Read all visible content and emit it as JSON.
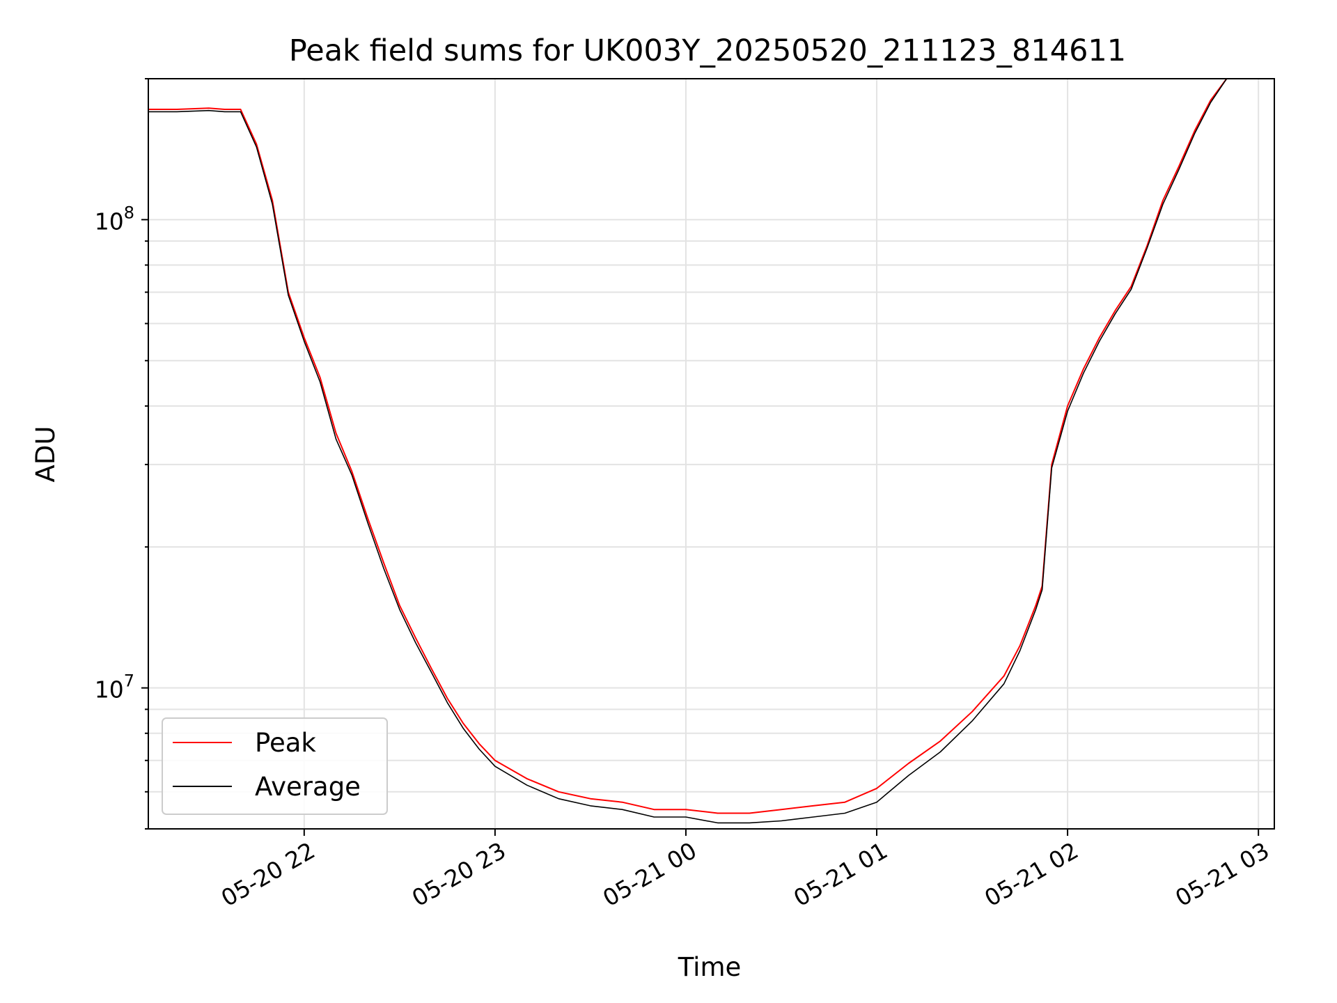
{
  "chart_data": {
    "type": "line",
    "title": "Peak field sums for UK003Y_20250520_211123_814611",
    "xlabel": "Time",
    "ylabel": "ADU",
    "x_ticks": [
      "2025-05-20 22:00",
      "2025-05-20 23:00",
      "2025-05-21 00:00",
      "2025-05-21 01:00",
      "2025-05-21 02:00",
      "2025-05-21 03:00"
    ],
    "x_tick_labels": [
      "05-20 22",
      "05-20 23",
      "05-21 00",
      "05-21 01",
      "05-21 02",
      "05-21 03"
    ],
    "xlim": [
      "2025-05-20 21:11",
      "2025-05-21 03:05"
    ],
    "y_scale": "log",
    "ylim": [
      5000000,
      200000000
    ],
    "y_ticks": [
      {
        "base": "10",
        "exp": "7",
        "value": 10000000
      },
      {
        "base": "10",
        "exp": "8",
        "value": 100000000
      }
    ],
    "grid": true,
    "legend": "lower-left",
    "colors": {
      "peak": "#ff0000",
      "average": "#000000"
    },
    "series": [
      {
        "name": "Peak",
        "x": [
          "2025-05-20 21:11",
          "2025-05-20 21:20",
          "2025-05-20 21:30",
          "2025-05-20 21:35",
          "2025-05-20 21:40",
          "2025-05-20 21:45",
          "2025-05-20 21:50",
          "2025-05-20 21:55",
          "2025-05-20 22:00",
          "2025-05-20 22:05",
          "2025-05-20 22:10",
          "2025-05-20 22:15",
          "2025-05-20 22:20",
          "2025-05-20 22:25",
          "2025-05-20 22:30",
          "2025-05-20 22:35",
          "2025-05-20 22:40",
          "2025-05-20 22:45",
          "2025-05-20 22:50",
          "2025-05-20 22:55",
          "2025-05-20 23:00",
          "2025-05-20 23:10",
          "2025-05-20 23:20",
          "2025-05-20 23:30",
          "2025-05-20 23:40",
          "2025-05-20 23:50",
          "2025-05-21 00:00",
          "2025-05-21 00:10",
          "2025-05-21 00:20",
          "2025-05-21 00:30",
          "2025-05-21 00:40",
          "2025-05-21 00:50",
          "2025-05-21 01:00",
          "2025-05-21 01:10",
          "2025-05-21 01:20",
          "2025-05-21 01:30",
          "2025-05-21 01:40",
          "2025-05-21 01:45",
          "2025-05-21 01:50",
          "2025-05-21 01:52",
          "2025-05-21 01:55",
          "2025-05-21 02:00",
          "2025-05-21 02:05",
          "2025-05-21 02:10",
          "2025-05-21 02:15",
          "2025-05-21 02:20",
          "2025-05-21 02:25",
          "2025-05-21 02:30",
          "2025-05-21 02:35",
          "2025-05-21 02:40",
          "2025-05-21 02:45",
          "2025-05-21 02:50",
          "2025-05-21 03:00",
          "2025-05-21 03:05"
        ],
        "values": [
          172000000,
          172000000,
          173000000,
          172000000,
          172000000,
          145000000,
          110000000,
          70000000,
          56000000,
          46000000,
          35000000,
          29000000,
          23000000,
          18500000,
          15000000,
          12800000,
          11000000,
          9500000,
          8400000,
          7600000,
          7000000,
          6400000,
          6000000,
          5800000,
          5700000,
          5500000,
          5500000,
          5400000,
          5400000,
          5500000,
          5600000,
          5700000,
          6100000,
          6900000,
          7700000,
          8900000,
          10600000,
          12300000,
          15000000,
          16500000,
          30000000,
          40000000,
          48000000,
          56000000,
          64000000,
          72000000,
          88000000,
          110000000,
          130000000,
          155000000,
          180000000,
          200000000,
          200000000,
          200000000
        ]
      },
      {
        "name": "Average",
        "x": [
          "2025-05-20 21:11",
          "2025-05-20 21:20",
          "2025-05-20 21:30",
          "2025-05-20 21:35",
          "2025-05-20 21:40",
          "2025-05-20 21:45",
          "2025-05-20 21:50",
          "2025-05-20 21:55",
          "2025-05-20 22:00",
          "2025-05-20 22:05",
          "2025-05-20 22:10",
          "2025-05-20 22:15",
          "2025-05-20 22:20",
          "2025-05-20 22:25",
          "2025-05-20 22:30",
          "2025-05-20 22:35",
          "2025-05-20 22:40",
          "2025-05-20 22:45",
          "2025-05-20 22:50",
          "2025-05-20 22:55",
          "2025-05-20 23:00",
          "2025-05-20 23:10",
          "2025-05-20 23:20",
          "2025-05-20 23:30",
          "2025-05-20 23:40",
          "2025-05-20 23:50",
          "2025-05-21 00:00",
          "2025-05-21 00:10",
          "2025-05-21 00:20",
          "2025-05-21 00:30",
          "2025-05-21 00:40",
          "2025-05-21 00:50",
          "2025-05-21 01:00",
          "2025-05-21 01:10",
          "2025-05-21 01:20",
          "2025-05-21 01:30",
          "2025-05-21 01:40",
          "2025-05-21 01:45",
          "2025-05-21 01:50",
          "2025-05-21 01:52",
          "2025-05-21 01:55",
          "2025-05-21 02:00",
          "2025-05-21 02:05",
          "2025-05-21 02:10",
          "2025-05-21 02:15",
          "2025-05-21 02:20",
          "2025-05-21 02:25",
          "2025-05-21 02:30",
          "2025-05-21 02:35",
          "2025-05-21 02:40",
          "2025-05-21 02:45",
          "2025-05-21 02:50",
          "2025-05-21 03:00",
          "2025-05-21 03:05"
        ],
        "values": [
          170000000,
          170000000,
          171000000,
          170000000,
          170000000,
          143000000,
          108000000,
          69000000,
          55000000,
          45000000,
          34000000,
          28500000,
          22500000,
          18000000,
          14700000,
          12500000,
          10800000,
          9300000,
          8200000,
          7400000,
          6800000,
          6200000,
          5800000,
          5600000,
          5500000,
          5300000,
          5300000,
          5150000,
          5150000,
          5200000,
          5300000,
          5400000,
          5700000,
          6500000,
          7300000,
          8500000,
          10200000,
          12000000,
          14700000,
          16200000,
          29500000,
          39000000,
          47000000,
          55000000,
          63000000,
          71000000,
          87000000,
          108000000,
          128000000,
          153000000,
          178000000,
          200000000,
          200000000,
          200000000
        ]
      }
    ]
  }
}
